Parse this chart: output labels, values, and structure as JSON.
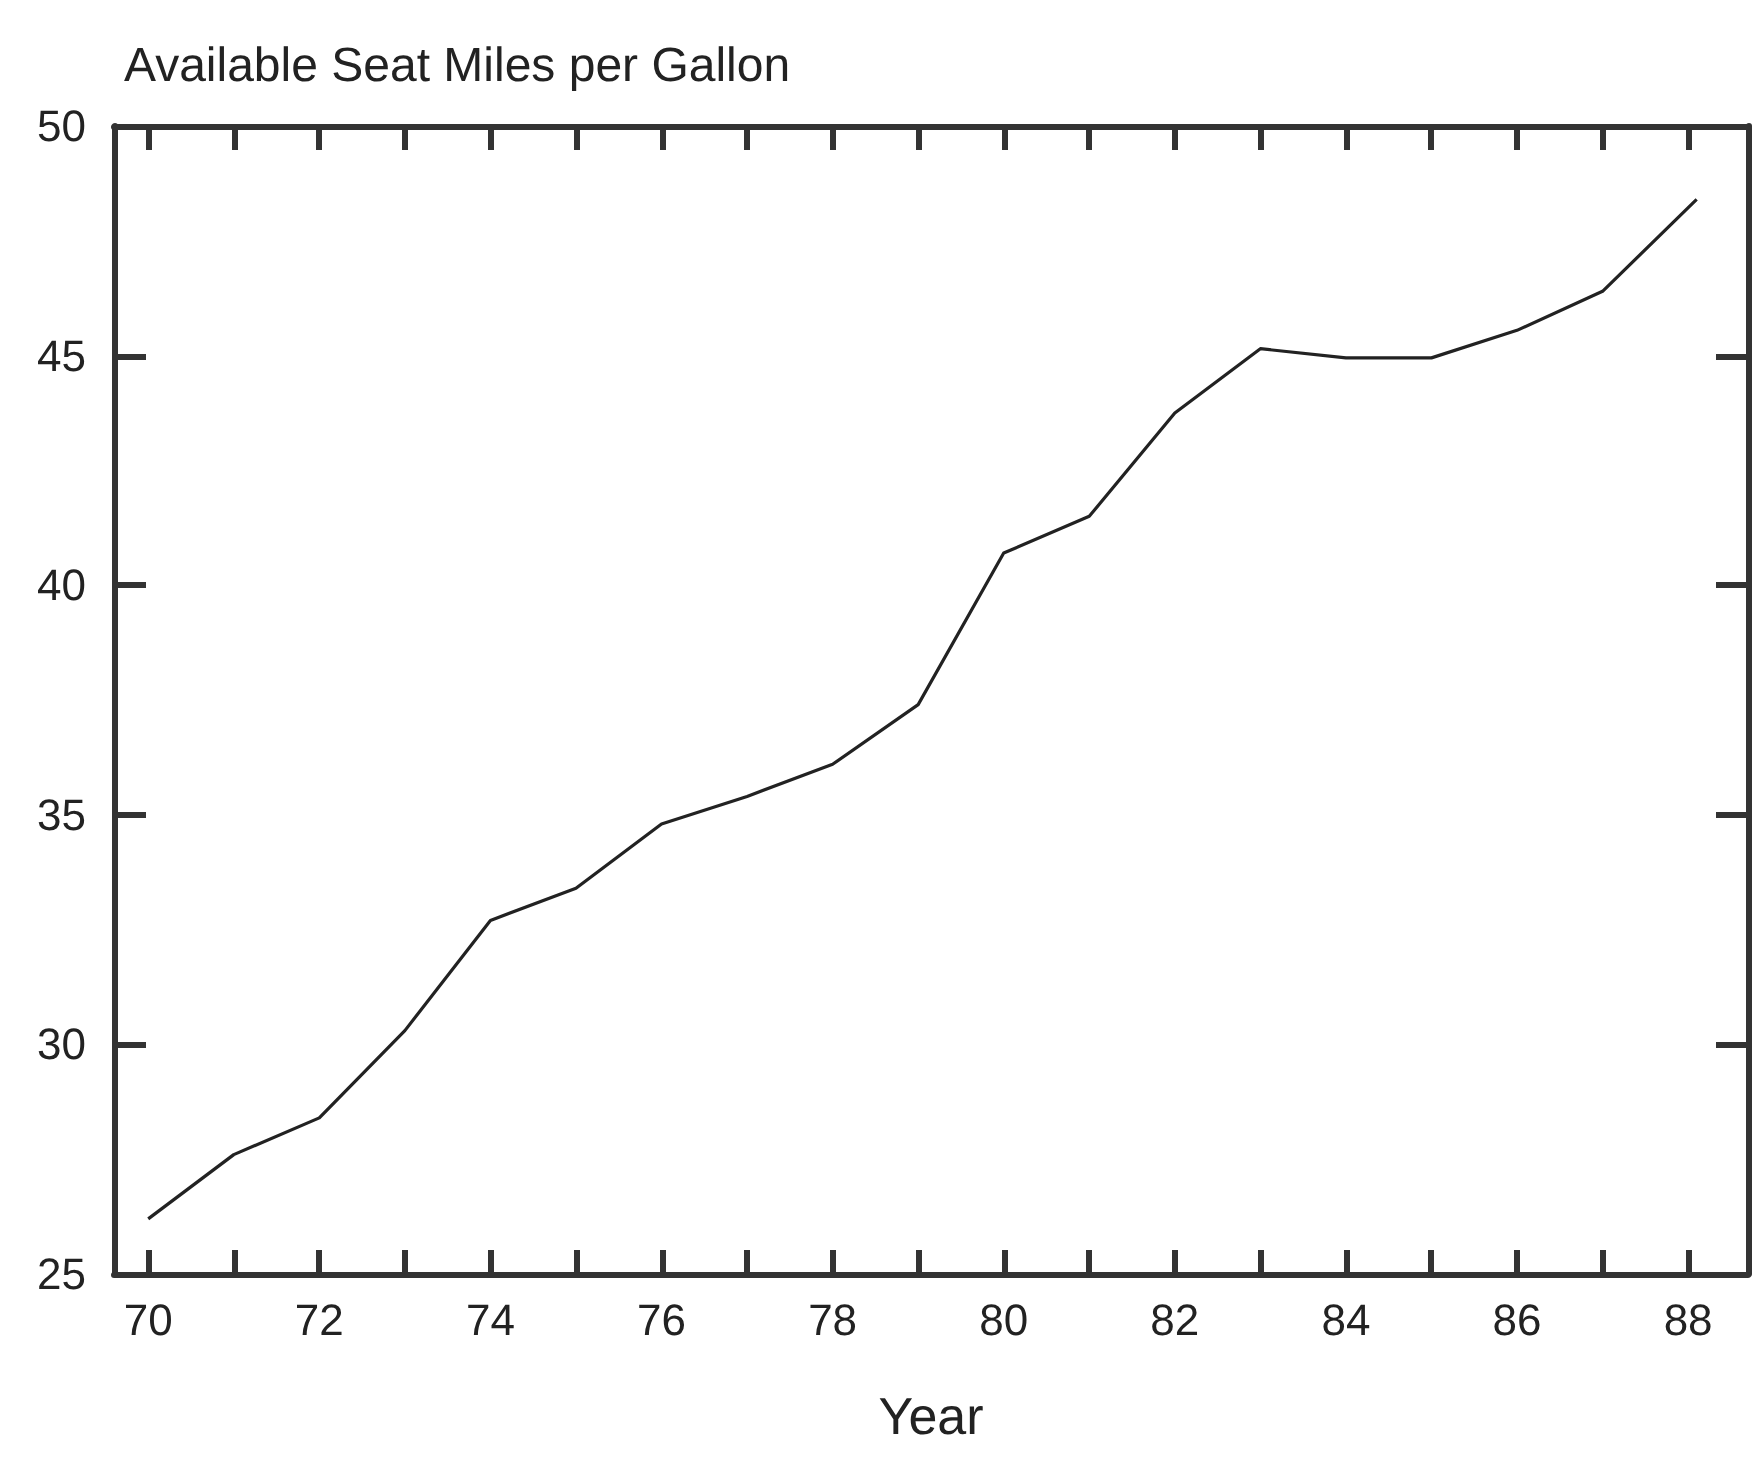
{
  "chart_data": {
    "type": "line",
    "title": "Available Seat Miles per Gallon",
    "xlabel": "Year",
    "x": [
      70,
      71,
      72,
      73,
      74,
      75,
      76,
      77,
      78,
      79,
      80,
      81,
      82,
      83,
      84,
      85,
      86,
      87,
      88.1
    ],
    "series": [
      {
        "color": "#222222",
        "values": [
          26.2,
          27.6,
          28.4,
          30.3,
          32.7,
          33.4,
          34.8,
          35.4,
          36.1,
          37.4,
          40.7,
          41.5,
          43.75,
          45.15,
          44.95,
          44.95,
          45.55,
          46.4,
          48.4
        ]
      }
    ],
    "xlim": [
      69.6,
      88.7
    ],
    "xticks": [
      70,
      {
        "value": 71,
        "label": null
      },
      72,
      {
        "value": 73,
        "label": null
      },
      74,
      {
        "value": 75,
        "label": null
      },
      76,
      {
        "value": 77,
        "label": null
      },
      78,
      {
        "value": 79,
        "label": null
      },
      80,
      {
        "value": 81,
        "label": null
      },
      82,
      {
        "value": 83,
        "label": null
      },
      84,
      {
        "value": 85,
        "label": null
      },
      86,
      {
        "value": 87,
        "label": null
      },
      88
    ],
    "ylim": [
      25,
      50
    ],
    "yticks": [
      25,
      30,
      35,
      40,
      45,
      50
    ],
    "grid": false,
    "marker": "none",
    "line_style": "solid"
  }
}
